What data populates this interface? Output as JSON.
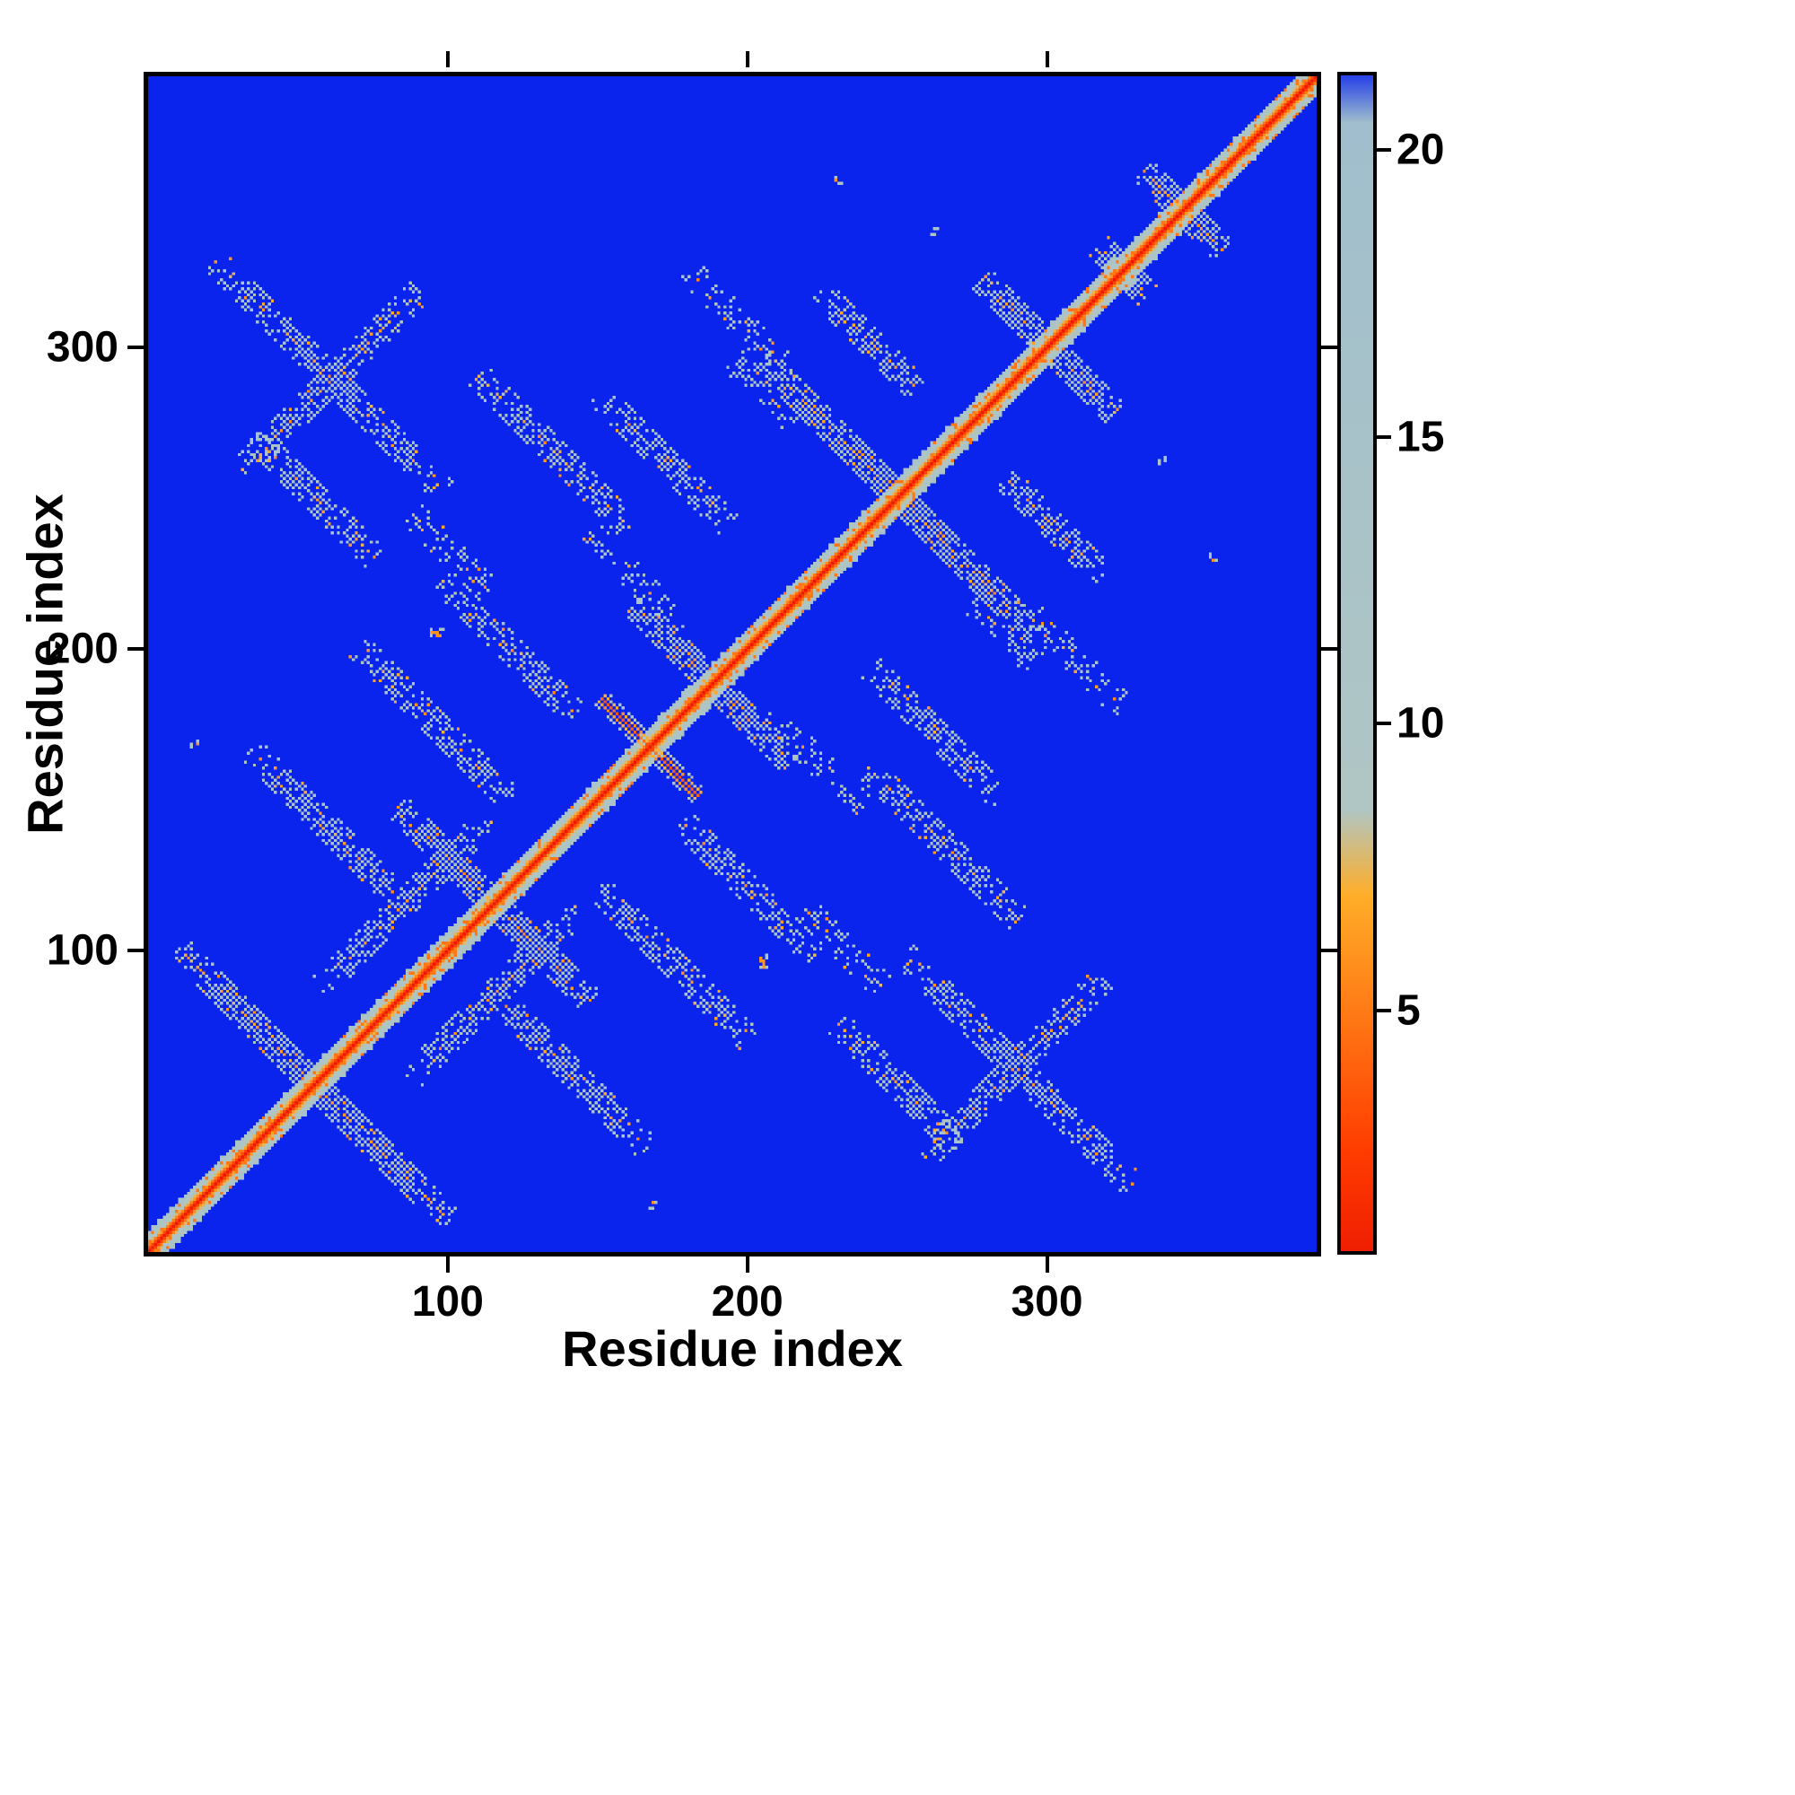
{
  "chart_data": {
    "type": "heatmap",
    "title": "",
    "xlabel": "Residue index",
    "ylabel": "Residue index",
    "x_ticks": [
      100,
      200,
      300
    ],
    "y_ticks": [
      100,
      200,
      300
    ],
    "axis_range": [
      0,
      390
    ],
    "n_residues": 390,
    "grid": false,
    "legend_position": "none",
    "colorbar": {
      "ticks": [
        5,
        10,
        15,
        20
      ],
      "display_range": [
        0.8,
        21.3
      ]
    },
    "colors": {
      "background_far": "#0a24ee",
      "diagonal_near": "#e81103",
      "mid_orange": "#ffae28",
      "contact_gray": "#b0c6c4",
      "frame": "#000000"
    },
    "colormap_stops": [
      {
        "v": 0.0,
        "c": "#e81103"
      },
      {
        "v": 2.5,
        "c": "#ff3c00"
      },
      {
        "v": 7.0,
        "c": "#ffae28"
      },
      {
        "v": 8.5,
        "c": "#b0c6c4"
      },
      {
        "v": 20.5,
        "c": "#a0becd"
      },
      {
        "v": 21.5,
        "c": "#0a24ee"
      },
      {
        "v": 23.0,
        "c": "#0a24ee"
      }
    ],
    "description": "Symmetric residue-residue distance map (contact map). Red main diagonal (distance ~0) with a speckled gray/orange sheath (~±6 residues); anti-diagonal helix-hairpin crosses centered on the diagonal; scattered off-diagonal contact clusters; uniform blue background for separations above ~21.",
    "diagonal_crosses": [
      {
        "center": 55,
        "half_len": 45
      },
      {
        "center": 115,
        "half_len": 32
      },
      {
        "center": 167,
        "half_len": 16,
        "hot": true
      },
      {
        "center": 188,
        "half_len": 26
      },
      {
        "center": 250,
        "half_len": 45
      },
      {
        "center": 300,
        "half_len": 22
      },
      {
        "center": 325,
        "half_len": 8
      },
      {
        "center": 345,
        "half_len": 13
      }
    ],
    "off_diagonal_features": [
      {
        "kind": "anti",
        "x": 60,
        "y": 140,
        "half_len": 26
      },
      {
        "kind": "anti",
        "x": 95,
        "y": 175,
        "half_len": 25
      },
      {
        "kind": "anti",
        "x": 120,
        "y": 200,
        "half_len": 22
      },
      {
        "kind": "diag",
        "x": 85,
        "y": 115,
        "half_len": 28
      },
      {
        "kind": "anti",
        "x": 60,
        "y": 290,
        "half_len": 38
      },
      {
        "kind": "diag",
        "x": 60,
        "y": 288,
        "half_len": 30
      },
      {
        "kind": "anti",
        "x": 135,
        "y": 265,
        "half_len": 25
      },
      {
        "kind": "anti",
        "x": 172,
        "y": 262,
        "half_len": 22
      },
      {
        "kind": "anti",
        "x": 205,
        "y": 285,
        "half_len": 14,
        "sparse": true
      },
      {
        "kind": "anti",
        "x": 240,
        "y": 302,
        "half_len": 16
      },
      {
        "kind": "anti",
        "x": 195,
        "y": 310,
        "half_len": 20,
        "sparse": true
      },
      {
        "kind": "anti",
        "x": 55,
        "y": 250,
        "half_len": 20
      },
      {
        "kind": "anti",
        "x": 100,
        "y": 232,
        "half_len": 16,
        "sparse": true
      },
      {
        "kind": "anti",
        "x": 160,
        "y": 225,
        "half_len": 18,
        "sparse": true
      }
    ],
    "speckles": [
      [
        15,
        168
      ],
      [
        95,
        205
      ],
      [
        205,
        97
      ],
      [
        230,
        355
      ],
      [
        300,
        203
      ],
      [
        338,
        262
      ]
    ],
    "seed": 42
  }
}
